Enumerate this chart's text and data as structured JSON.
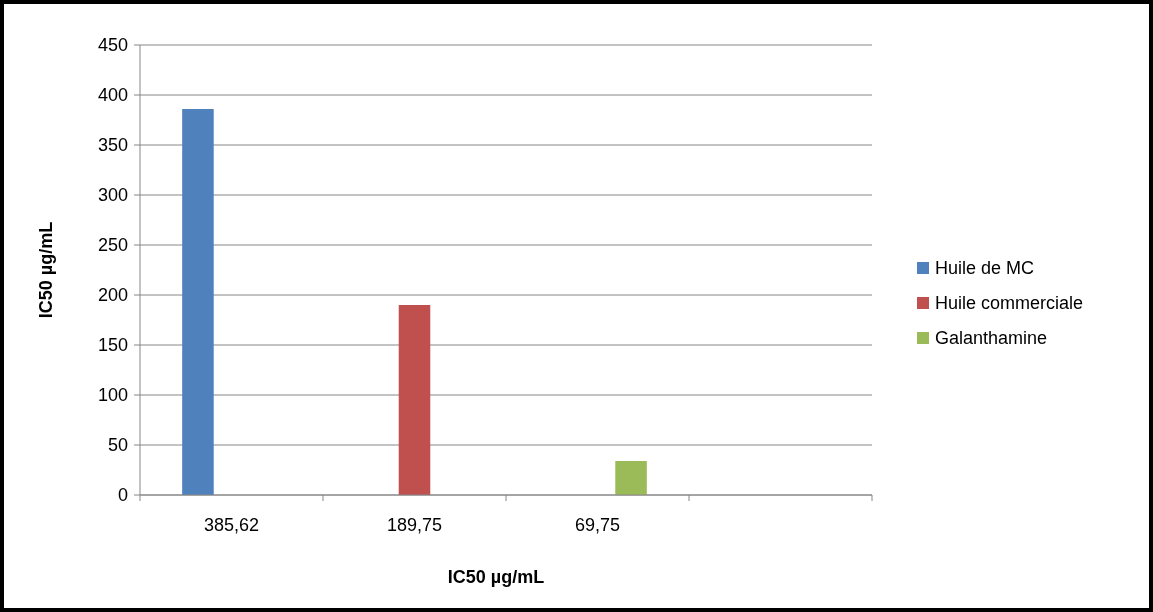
{
  "chart_data": {
    "type": "bar",
    "xlabel": "IC50 µg/mL",
    "ylabel": "IC50 µg/mL",
    "categories": [
      "385,62",
      "189,75",
      "69,75",
      null
    ],
    "series": [
      {
        "name": "Huile de MC",
        "color": "#4f81bd",
        "values": [
          386,
          null,
          null,
          null
        ]
      },
      {
        "name": "Huile commerciale",
        "color": "#c0504d",
        "values": [
          null,
          190,
          null,
          null
        ]
      },
      {
        "name": "Galanthamine",
        "color": "#9bbb59",
        "values": [
          null,
          null,
          34,
          null
        ]
      }
    ],
    "ylim": [
      0,
      450
    ],
    "yticks": [
      0,
      50,
      100,
      150,
      200,
      250,
      300,
      350,
      400,
      450
    ],
    "grid": "y",
    "legend": "right"
  }
}
